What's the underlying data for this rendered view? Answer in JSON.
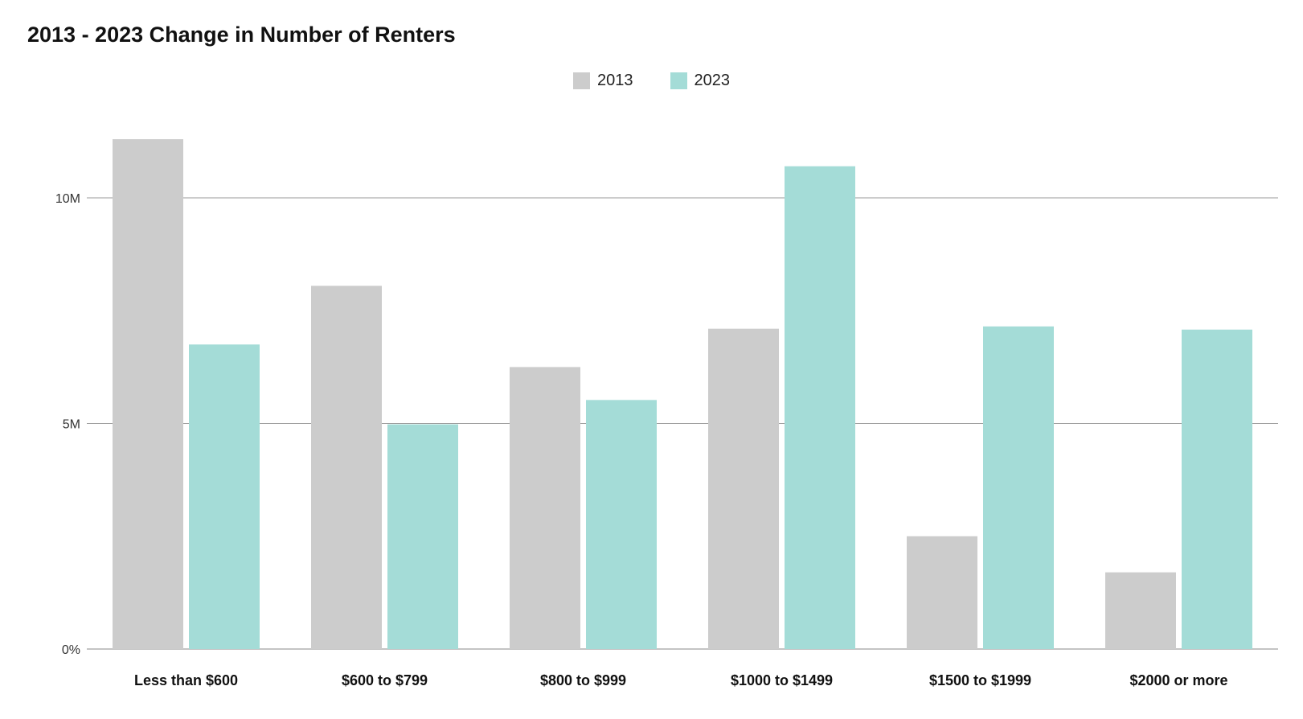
{
  "chart_data": {
    "type": "bar",
    "title": "2013 - 2023 Change in Number of Renters",
    "xlabel": "",
    "ylabel": "",
    "categories": [
      "Less than $600",
      "$600 to $799",
      "$800 to $999",
      "$1000 to $1499",
      "$1500 to $1999",
      "$2000 or more"
    ],
    "series": [
      {
        "name": "2013",
        "color": "#cccccc",
        "values": [
          11300000,
          8050000,
          6250000,
          7100000,
          2500000,
          1700000
        ]
      },
      {
        "name": "2023",
        "color": "#a4dcd7",
        "values": [
          6750000,
          4980000,
          5520000,
          10700000,
          7150000,
          7080000
        ]
      }
    ],
    "ylim": [
      0,
      10000000
    ],
    "yticks": [
      {
        "value": 0,
        "label": "0%"
      },
      {
        "value": 5000000,
        "label": "5M"
      },
      {
        "value": 10000000,
        "label": "10M"
      }
    ],
    "grid": true,
    "legend_position": "top-center"
  }
}
